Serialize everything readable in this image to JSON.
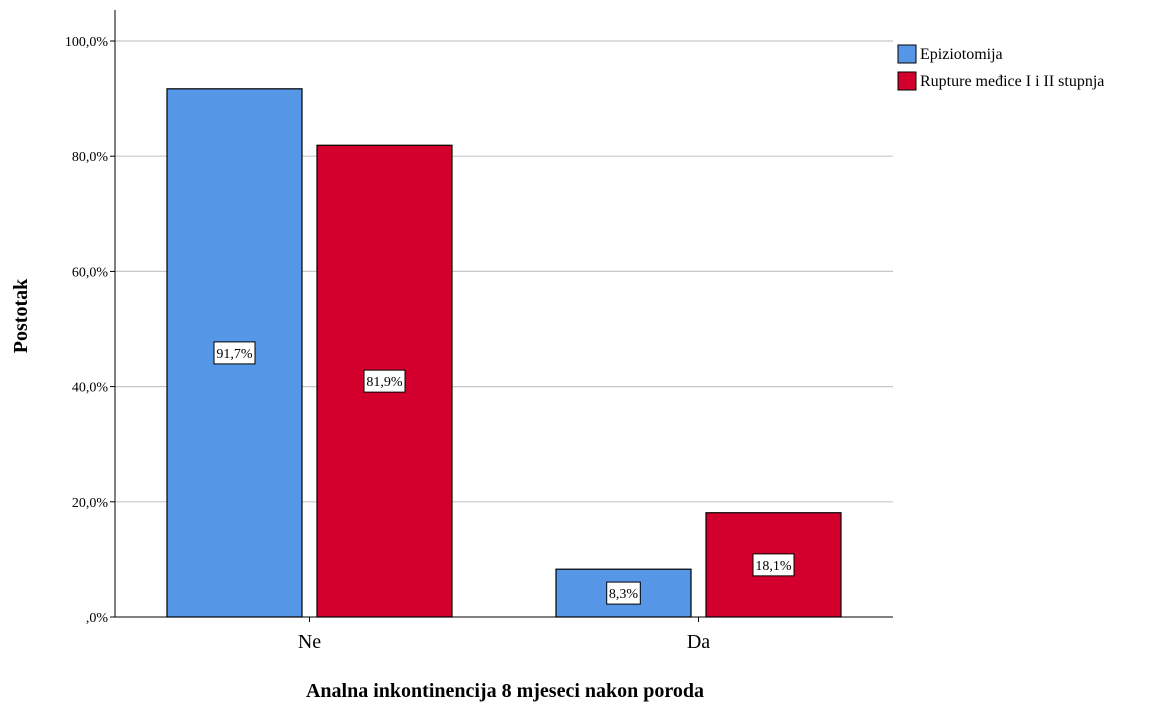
{
  "chart_data": {
    "type": "bar",
    "categories": [
      "Ne",
      "Da"
    ],
    "series": [
      {
        "name": "Epiziotomija",
        "values": [
          91.7,
          8.3
        ],
        "labels": [
          "91,7%",
          "8,3%"
        ],
        "color": "#5596e6"
      },
      {
        "name": "Rupture međice I i II stupnja",
        "values": [
          81.9,
          18.1
        ],
        "labels": [
          "81,9%",
          "18,1%"
        ],
        "color": "#d3002d"
      }
    ],
    "xlabel": "Analna inkontinencija 8 mjeseci nakon poroda",
    "ylabel": "Postotak",
    "ylim": [
      0,
      100
    ],
    "yticks": [
      0,
      20,
      40,
      60,
      80,
      100
    ],
    "ytick_labels": [
      ",0%",
      "20,0%",
      "40,0%",
      "60,0%",
      "80,0%",
      "100,0%"
    ],
    "grid": true,
    "legend_position": "top-right"
  }
}
